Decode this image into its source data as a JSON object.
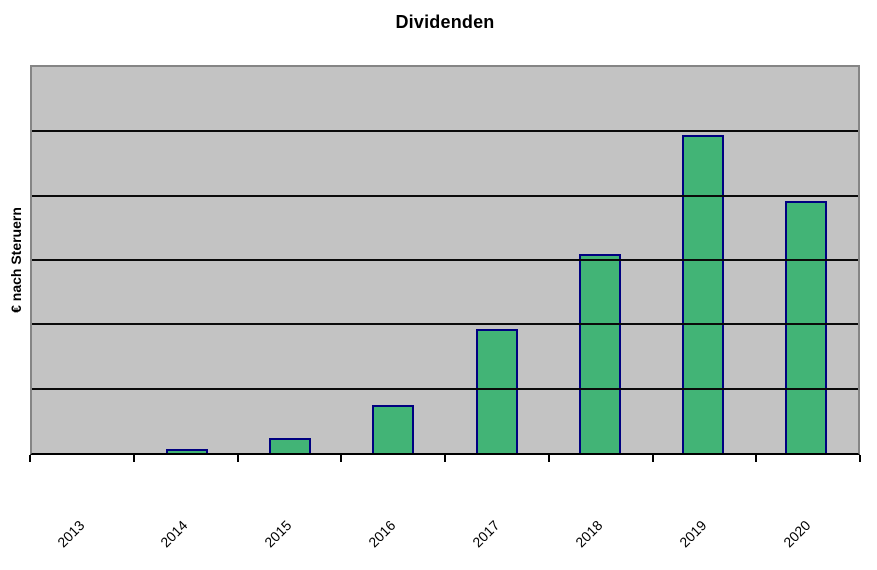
{
  "chart_data": {
    "type": "bar",
    "title": "Dividenden",
    "xlabel": "",
    "ylabel": "€ nach Steruern",
    "categories": [
      "2013",
      "2014",
      "2015",
      "2016",
      "2017",
      "2018",
      "2019",
      "2020"
    ],
    "values": [
      0,
      0.06,
      0.23,
      0.74,
      1.92,
      3.09,
      4.95,
      3.91
    ],
    "ylim": [
      0,
      6
    ],
    "y_tick_labels": [],
    "grid": "horizontal major gridlines, 6 equal divisions, no y-axis numeric labels",
    "legend": "none",
    "x_label_rotation_deg": 45,
    "colors": {
      "bar_fill": "#42B476",
      "bar_border": "#000080",
      "plot_background": "#C3C3C3",
      "plot_border": "#858585",
      "gridline": "#0A0A0A",
      "axis_line": "#000000",
      "text": "#000000",
      "page_background": "#FFFFFF"
    }
  }
}
